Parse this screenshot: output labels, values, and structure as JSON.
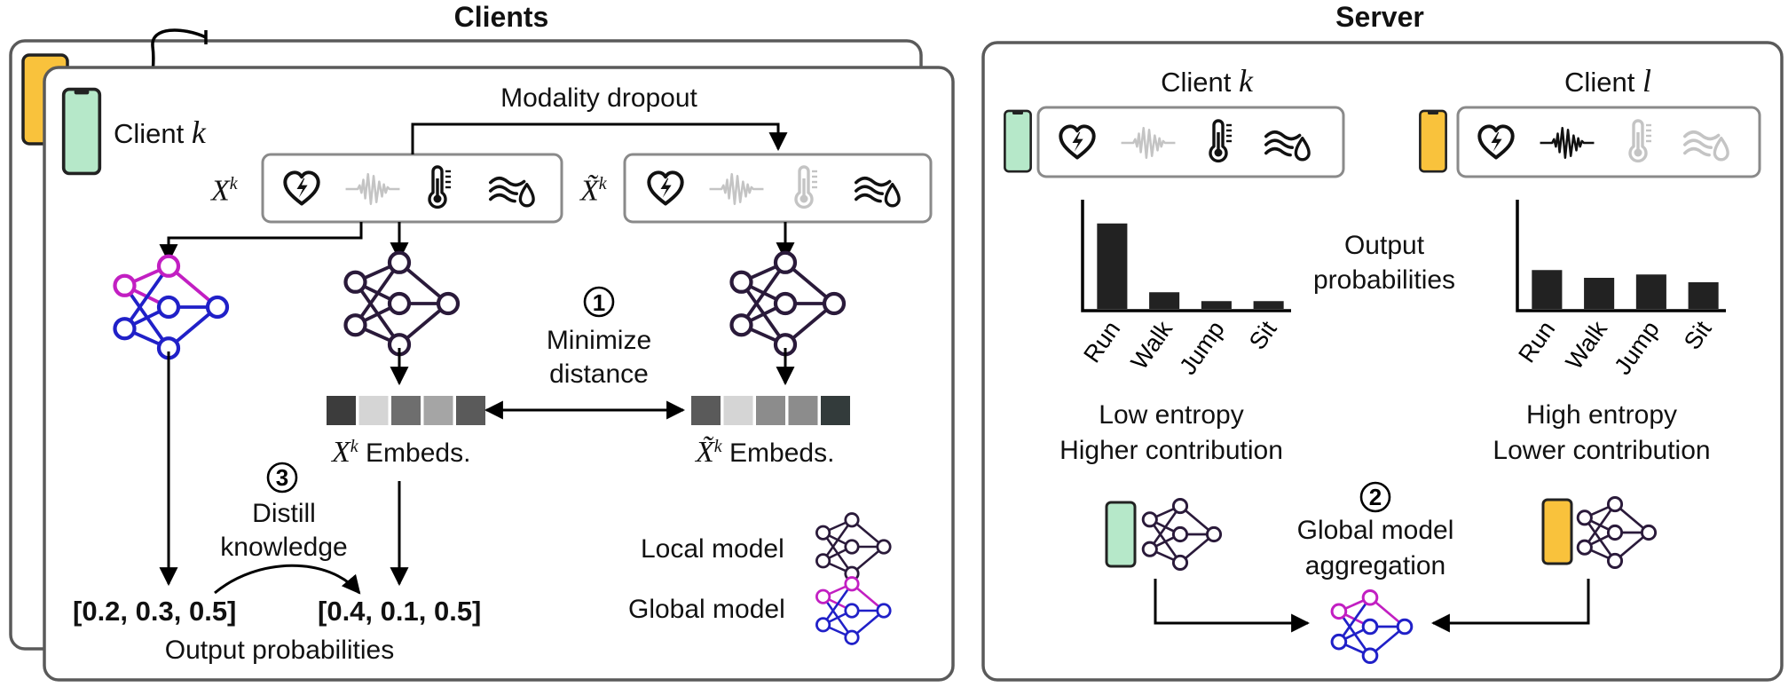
{
  "clients_panel": {
    "title": "Clients",
    "client_label": "Client",
    "client_var": "k",
    "modality_dropout": "Modality dropout",
    "input_label": "X",
    "input_sup": "k",
    "dropped_input_label": "X̃",
    "dropped_input_sup": "k",
    "step1_number": "1",
    "step1_text_line1": "Minimize",
    "step1_text_line2": "distance",
    "embeds_label": "Embeds.",
    "step3_number": "3",
    "step3_text_line1": "Distill",
    "step3_text_line2": "knowledge",
    "global_probs": "[0.2, 0.3, 0.5]",
    "local_probs": "[0.4, 0.1, 0.5]",
    "output_probabilities": "Output probabilities",
    "legend_local": "Local model",
    "legend_global": "Global model",
    "embed_colors_left": [
      "#3c3c3c",
      "#d5d5d5",
      "#6e6e6e",
      "#a5a5a5",
      "#5a5a5a"
    ],
    "embed_colors_right": [
      "#5a5a5a",
      "#d5d5d5",
      "#8c8c8c",
      "#8c8c8c",
      "#333b3b"
    ]
  },
  "server_panel": {
    "title": "Server",
    "client_k_label": "Client",
    "client_k_var": "k",
    "client_l_label": "Client",
    "client_l_var": "l",
    "output_prob_line1": "Output",
    "output_prob_line2": "probabilities",
    "left_caption_line1": "Low entropy",
    "left_caption_line2": "Higher contribution",
    "right_caption_line1": "High entropy",
    "right_caption_line2": "Lower contribution",
    "step2_number": "2",
    "step2_text_line1": "Global model",
    "step2_text_line2": "aggregation"
  },
  "colors": {
    "client_k_phone": "#b6e8c9",
    "client_l_phone": "#f9c23c",
    "global_model_top": "#c21fc2",
    "global_model_bottom": "#2020c8",
    "local_model": "#2a1a3a",
    "muted_icon": "#c4c4c4",
    "box_border": "#8a8a8a"
  },
  "chart_data": [
    {
      "type": "bar",
      "categories": [
        "Run",
        "Walk",
        "Jump",
        "Sit"
      ],
      "values": [
        0.77,
        0.15,
        0.07,
        0.07
      ]
    },
    {
      "type": "bar",
      "categories": [
        "Run",
        "Walk",
        "Jump",
        "Sit"
      ],
      "values": [
        0.35,
        0.28,
        0.31,
        0.24
      ]
    }
  ]
}
